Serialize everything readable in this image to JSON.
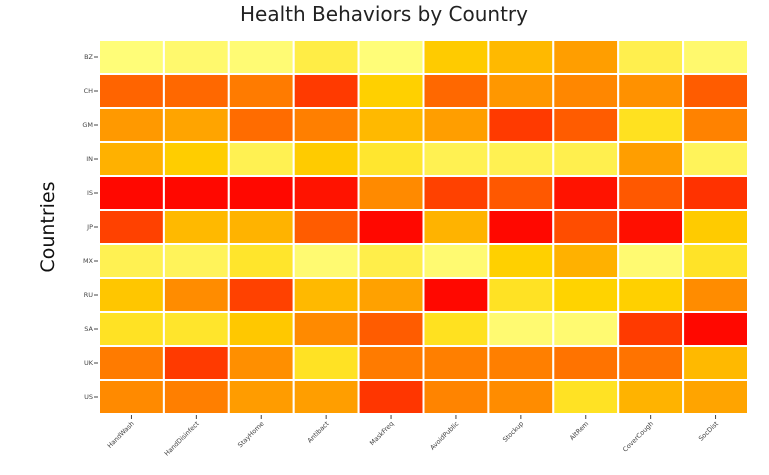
{
  "chart_data": {
    "type": "heatmap",
    "title": "Health Behaviors by Country",
    "xlabel": "",
    "ylabel": "Countries",
    "x_categories": [
      "HandWash",
      "HandDisinfect",
      "StayHome",
      "Antibact",
      "MaskFreq",
      "AvoidPublic",
      "Stockup",
      "AltRem",
      "CoverCough",
      "SocDist"
    ],
    "y_categories": [
      "BZ",
      "CH",
      "GM",
      "IN",
      "IS",
      "JP",
      "MX",
      "RU",
      "SA",
      "UK",
      "US"
    ],
    "colorscale": [
      "#ff0000",
      "#ff8000",
      "#ffd700",
      "#ffff80"
    ],
    "value_range": [
      0,
      1
    ],
    "values": [
      [
        0.98,
        0.95,
        0.97,
        0.85,
        0.98,
        0.62,
        0.55,
        0.45,
        0.87,
        0.95
      ],
      [
        0.26,
        0.27,
        0.32,
        0.15,
        0.64,
        0.27,
        0.42,
        0.36,
        0.4,
        0.24
      ],
      [
        0.43,
        0.47,
        0.28,
        0.33,
        0.55,
        0.45,
        0.15,
        0.24,
        0.75,
        0.34
      ],
      [
        0.52,
        0.63,
        0.88,
        0.62,
        0.79,
        0.88,
        0.88,
        0.87,
        0.45,
        0.9
      ],
      [
        0.02,
        0.02,
        0.02,
        0.05,
        0.37,
        0.17,
        0.23,
        0.05,
        0.23,
        0.13
      ],
      [
        0.17,
        0.55,
        0.53,
        0.24,
        0.02,
        0.53,
        0.02,
        0.2,
        0.04,
        0.62
      ],
      [
        0.88,
        0.9,
        0.78,
        0.96,
        0.86,
        0.96,
        0.64,
        0.52,
        0.96,
        0.77
      ],
      [
        0.6,
        0.38,
        0.17,
        0.55,
        0.46,
        0.02,
        0.76,
        0.65,
        0.64,
        0.38
      ],
      [
        0.76,
        0.78,
        0.61,
        0.37,
        0.24,
        0.75,
        0.96,
        0.96,
        0.15,
        0.02
      ],
      [
        0.32,
        0.15,
        0.39,
        0.76,
        0.32,
        0.33,
        0.33,
        0.3,
        0.3,
        0.55
      ],
      [
        0.37,
        0.33,
        0.44,
        0.45,
        0.14,
        0.35,
        0.38,
        0.76,
        0.53,
        0.47
      ]
    ],
    "grid": false,
    "legend": "none"
  }
}
